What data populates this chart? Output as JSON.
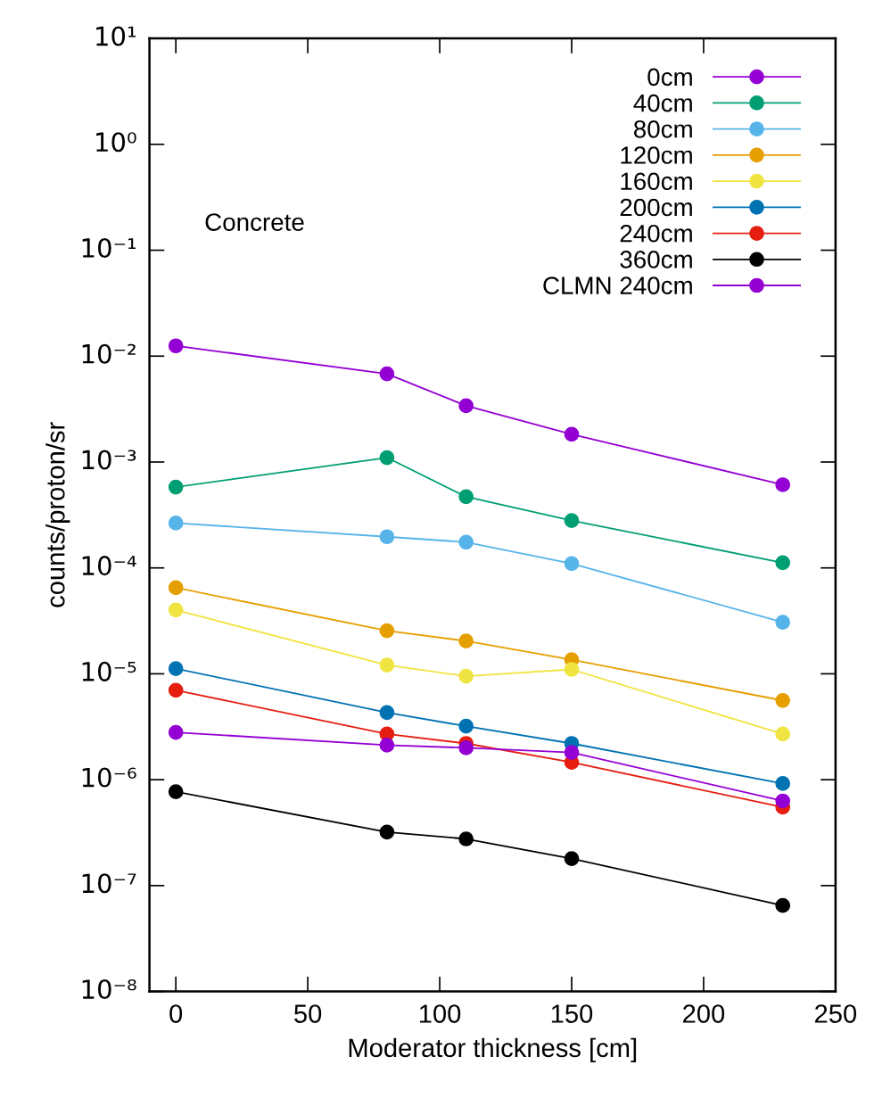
{
  "chart_data": {
    "type": "line",
    "xlabel": "Moderator thickness [cm]",
    "ylabel": "counts/proton/sr",
    "x": [
      0,
      80,
      110,
      150,
      230
    ],
    "series": [
      {
        "name": "0cm",
        "color": "#9400d3",
        "values": [
          0.0125,
          0.0068,
          0.0034,
          0.00183,
          0.00061
        ]
      },
      {
        "name": "40cm",
        "color": "#009e73",
        "values": [
          0.00058,
          0.0011,
          0.00047,
          0.00028,
          0.000112
        ]
      },
      {
        "name": "80cm",
        "color": "#56b4e9",
        "values": [
          0.000265,
          0.000197,
          0.000175,
          0.00011,
          3.07e-05
        ]
      },
      {
        "name": "120cm",
        "color": "#e69f00",
        "values": [
          6.5e-05,
          2.55e-05,
          2.04e-05,
          1.36e-05,
          5.6e-06
        ]
      },
      {
        "name": "160cm",
        "color": "#f0e442",
        "values": [
          4e-05,
          1.21e-05,
          9.5e-06,
          1.1e-05,
          2.7e-06
        ]
      },
      {
        "name": "200cm",
        "color": "#0072b2",
        "values": [
          1.12e-05,
          4.3e-06,
          3.2e-06,
          2.2e-06,
          9.2e-07
        ]
      },
      {
        "name": "240cm",
        "color": "#e51e10",
        "values": [
          7e-06,
          2.7e-06,
          2.2e-06,
          1.46e-06,
          5.5e-07
        ]
      },
      {
        "name": "360cm",
        "color": "#000000",
        "values": [
          7.7e-07,
          3.2e-07,
          2.76e-07,
          1.8e-07,
          6.5e-08
        ]
      },
      {
        "name": "CLMN 240cm",
        "color": "#9400d3",
        "values": [
          2.8e-06,
          2.12e-06,
          2e-06,
          1.81e-06,
          6.3e-07
        ]
      }
    ],
    "log": "y",
    "xlim": [
      -10,
      250
    ],
    "xticks": [
      0,
      50,
      100,
      150,
      200,
      250
    ],
    "ylim": [
      1e-08,
      10
    ],
    "yticks": [
      {
        "value": 1e-08,
        "label": "10⁻⁸"
      },
      {
        "value": 1e-07,
        "label": "10⁻⁷"
      },
      {
        "value": 1e-06,
        "label": "10⁻⁶"
      },
      {
        "value": 1e-05,
        "label": "10⁻⁵"
      },
      {
        "value": 0.0001,
        "label": "10⁻⁴"
      },
      {
        "value": 0.001,
        "label": "10⁻³"
      },
      {
        "value": 0.01,
        "label": "10⁻²"
      },
      {
        "value": 0.1,
        "label": "10⁻¹"
      },
      {
        "value": 1,
        "label": "10⁰"
      },
      {
        "value": 10,
        "label": "10¹"
      }
    ],
    "annotations": [
      "Concrete"
    ],
    "grid": false,
    "legend": "top right",
    "marker": "circle",
    "line_style": "solid"
  }
}
